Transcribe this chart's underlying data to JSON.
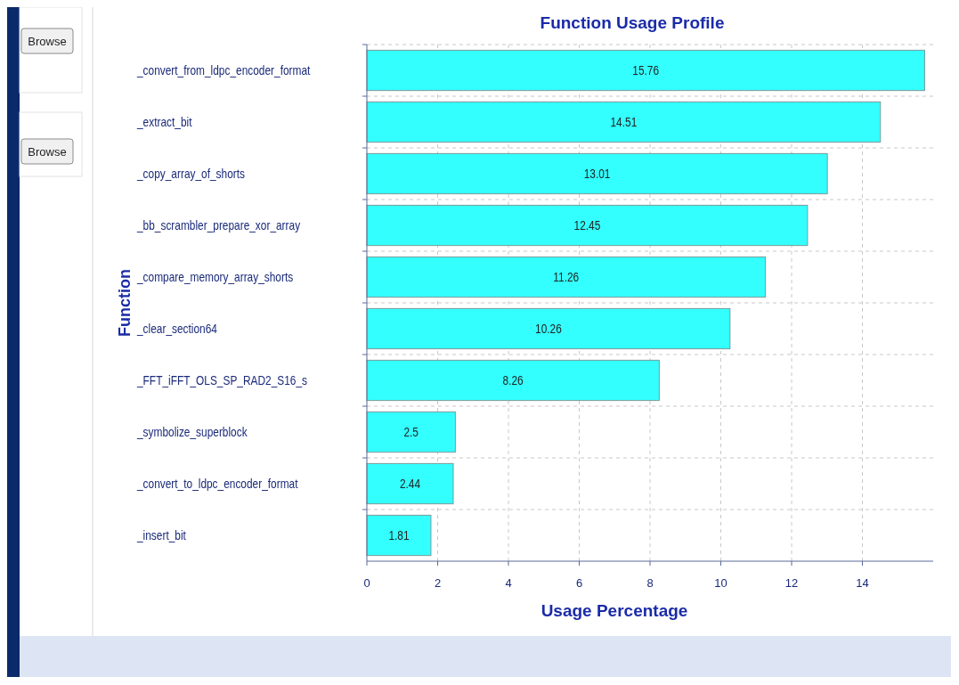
{
  "chart_data": {
    "type": "bar",
    "orientation": "horizontal",
    "title": "Function Usage Profile",
    "xlabel": "Usage Percentage",
    "ylabel": "Function",
    "categories": [
      "_convert_from_ldpc_encoder_format",
      "_extract_bit",
      "_copy_array_of_shorts",
      "_bb_scrambler_prepare_xor_array",
      "_compare_memory_array_shorts",
      "_clear_section64",
      "_FFT_iFFT_OLS_SP_RAD2_S16_s",
      "_symbolize_superblock",
      "_convert_to_ldpc_encoder_format",
      "_insert_bit"
    ],
    "values": [
      15.76,
      14.51,
      13.01,
      12.45,
      11.26,
      10.26,
      8.26,
      2.5,
      2.44,
      1.81
    ],
    "color": "#33ffff",
    "xlim": [
      0,
      16
    ],
    "xticks": [
      0,
      2,
      4,
      6,
      8,
      10,
      12,
      14
    ],
    "grid": true,
    "data_labels": true,
    "annotations": [
      "Browse",
      "Browse"
    ]
  }
}
